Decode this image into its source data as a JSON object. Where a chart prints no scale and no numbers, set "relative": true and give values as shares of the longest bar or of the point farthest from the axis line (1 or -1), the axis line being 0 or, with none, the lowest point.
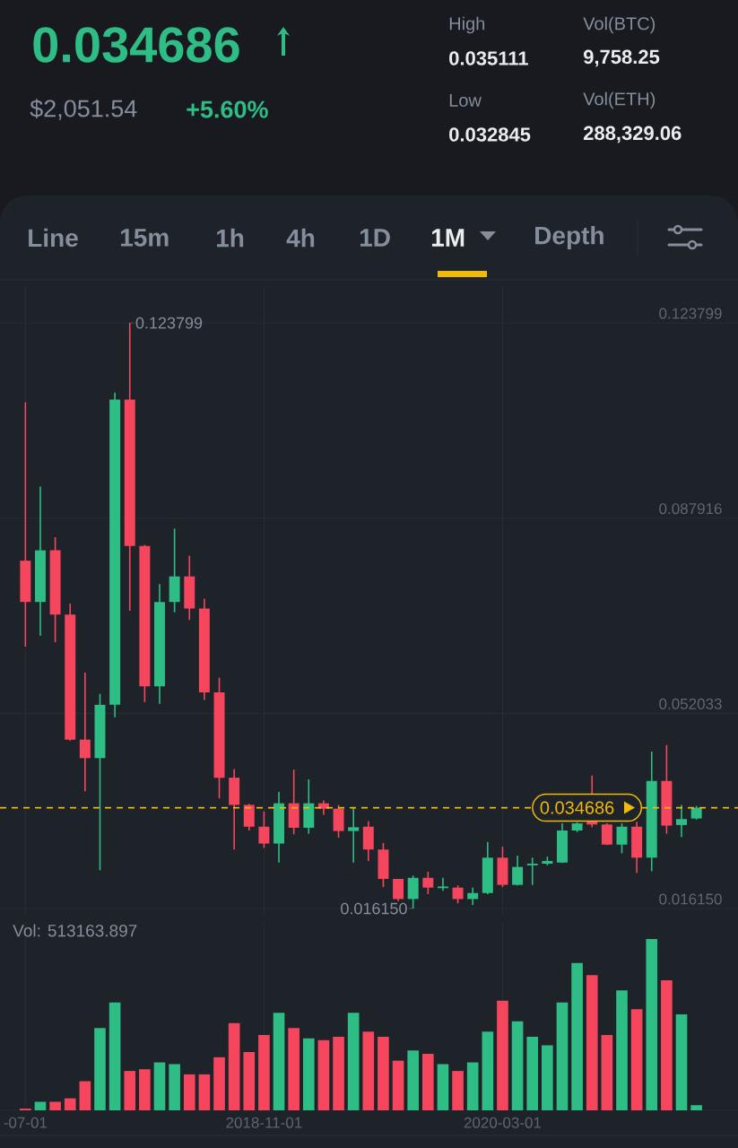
{
  "chart_data": [
    {
      "type": "other",
      "annotations": [
        "0.034686",
        "$2,051.54",
        "+5.60%",
        "High",
        "0.035111",
        "Vol(BTC)",
        "9,758.25",
        "Low",
        "0.032845",
        "Vol(ETH)",
        "288,329.06",
        "Line",
        "15m",
        "1h",
        "4h",
        "1D",
        "1M",
        "Depth"
      ]
    },
    {
      "type": "candlestick",
      "x": [
        "2017-07",
        "2017-08",
        "2017-09",
        "2017-10",
        "2017-11",
        "2017-12",
        "2018-01",
        "2018-02",
        "2018-03",
        "2018-04",
        "2018-05",
        "2018-06",
        "2018-07",
        "2018-08",
        "2018-09",
        "2018-10",
        "2018-11",
        "2018-12",
        "2019-01",
        "2019-02",
        "2019-03",
        "2019-04",
        "2019-05",
        "2019-06",
        "2019-07",
        "2019-08",
        "2019-09",
        "2019-10",
        "2019-11",
        "2019-12",
        "2020-01",
        "2020-02",
        "2020-03",
        "2020-04",
        "2020-05",
        "2020-06",
        "2020-07",
        "2020-08",
        "2020-09",
        "2020-10",
        "2020-11",
        "2020-12",
        "2021-01",
        "2021-02",
        "2021-03",
        "2021-04"
      ],
      "ohlc": [
        [
          0.0801,
          0.1092,
          0.0643,
          0.0725
        ],
        [
          0.0725,
          0.0937,
          0.0663,
          0.082
        ],
        [
          0.082,
          0.0844,
          0.0651,
          0.0702
        ],
        [
          0.0702,
          0.0722,
          0.047,
          0.0472
        ],
        [
          0.0472,
          0.0595,
          0.0377,
          0.0438
        ],
        [
          0.0438,
          0.0556,
          0.0232,
          0.0536
        ],
        [
          0.0536,
          0.111,
          0.0513,
          0.1097
        ],
        [
          0.1097,
          0.123799,
          0.0709,
          0.0828
        ],
        [
          0.0828,
          0.083,
          0.0541,
          0.057
        ],
        [
          0.057,
          0.0758,
          0.0538,
          0.0725
        ],
        [
          0.0725,
          0.086,
          0.0706,
          0.0772
        ],
        [
          0.0772,
          0.081,
          0.0692,
          0.0713
        ],
        [
          0.0713,
          0.0731,
          0.0545,
          0.0559
        ],
        [
          0.0559,
          0.0586,
          0.0364,
          0.0402
        ],
        [
          0.0402,
          0.0418,
          0.027,
          0.0352
        ],
        [
          0.0352,
          0.0354,
          0.0305,
          0.0312
        ],
        [
          0.0312,
          0.034,
          0.0273,
          0.0281
        ],
        [
          0.0281,
          0.0376,
          0.0246,
          0.0355
        ],
        [
          0.0355,
          0.0417,
          0.0298,
          0.031
        ],
        [
          0.031,
          0.0399,
          0.0299,
          0.0355
        ],
        [
          0.0355,
          0.036,
          0.0334,
          0.0345
        ],
        [
          0.0345,
          0.0352,
          0.0292,
          0.0304
        ],
        [
          0.0304,
          0.0347,
          0.0246,
          0.0311
        ],
        [
          0.0312,
          0.0322,
          0.0249,
          0.027
        ],
        [
          0.027,
          0.0282,
          0.0201,
          0.0216
        ],
        [
          0.0216,
          0.0216,
          0.0175,
          0.0179
        ],
        [
          0.0179,
          0.0222,
          0.01615,
          0.0218
        ],
        [
          0.0218,
          0.0229,
          0.0188,
          0.02
        ],
        [
          0.0199,
          0.0218,
          0.0194,
          0.0202
        ],
        [
          0.02,
          0.0204,
          0.0171,
          0.0179
        ],
        [
          0.0179,
          0.02,
          0.0168,
          0.019
        ],
        [
          0.019,
          0.0284,
          0.0188,
          0.0255
        ],
        [
          0.0255,
          0.0275,
          0.0201,
          0.0205
        ],
        [
          0.0205,
          0.0259,
          0.0204,
          0.0238
        ],
        [
          0.0241,
          0.0255,
          0.0205,
          0.0244
        ],
        [
          0.0244,
          0.0257,
          0.0241,
          0.0249
        ],
        [
          0.0246,
          0.0318,
          0.0245,
          0.0305
        ],
        [
          0.0305,
          0.032,
          0.0302,
          0.0318
        ],
        [
          0.0322,
          0.0406,
          0.0311,
          0.0316
        ],
        [
          0.0316,
          0.0318,
          0.0278,
          0.0279
        ],
        [
          0.0279,
          0.0318,
          0.0263,
          0.0312
        ],
        [
          0.0312,
          0.0321,
          0.0227,
          0.0255
        ],
        [
          0.0255,
          0.045,
          0.023,
          0.0396
        ],
        [
          0.0396,
          0.0462,
          0.0299,
          0.0314
        ],
        [
          0.0315,
          0.0352,
          0.0293,
          0.0326
        ],
        [
          0.0327,
          0.035,
          0.0325,
          0.034686
        ]
      ],
      "colors": [
        "#f6465d",
        "#2ebd85",
        "#f6465d",
        "#f6465d",
        "#f6465d",
        "#2ebd85",
        "#2ebd85",
        "#f6465d",
        "#f6465d",
        "#2ebd85",
        "#2ebd85",
        "#f6465d",
        "#f6465d",
        "#f6465d",
        "#f6465d",
        "#f6465d",
        "#f6465d",
        "#2ebd85",
        "#f6465d",
        "#2ebd85",
        "#f6465d",
        "#f6465d",
        "#2ebd85",
        "#f6465d",
        "#f6465d",
        "#f6465d",
        "#2ebd85",
        "#f6465d",
        "#2ebd85",
        "#f6465d",
        "#2ebd85",
        "#2ebd85",
        "#f6465d",
        "#2ebd85",
        "#2ebd85",
        "#2ebd85",
        "#2ebd85",
        "#2ebd85",
        "#f6465d",
        "#f6465d",
        "#2ebd85",
        "#f6465d",
        "#2ebd85",
        "#f6465d",
        "#2ebd85",
        "#2ebd85"
      ],
      "xlim": [
        "2017-05-10",
        "2021-06-25"
      ],
      "ylim": [
        0.015,
        0.1304
      ],
      "xticks": [
        {
          "value": "2017-07-01",
          "label": null
        },
        {
          "value": "2018-11-01",
          "label": null
        },
        {
          "value": "2020-03-01",
          "label": null
        }
      ],
      "yticks": [
        {
          "value": 0.01615,
          "label": "0.016150"
        },
        0.052033,
        0.087916,
        0.123799
      ],
      "grid": true,
      "tick_labels": "y",
      "ref_lines": [
        {
          "axis": "y",
          "value": 0.034686,
          "label": "0.034686",
          "color": "#f0b90b",
          "line_style": "dashed"
        }
      ],
      "annotations": [
        {
          "text": "0.123799",
          "x": "2018-02",
          "y": 0.123799
        },
        {
          "text": "0.016150",
          "x": "2019-09",
          "y": 0.01615
        }
      ]
    },
    {
      "type": "bar",
      "relative": true,
      "x": [
        "2017-07",
        "2017-08",
        "2017-09",
        "2017-10",
        "2017-11",
        "2017-12",
        "2018-01",
        "2018-02",
        "2018-03",
        "2018-04",
        "2018-05",
        "2018-06",
        "2018-07",
        "2018-08",
        "2018-09",
        "2018-10",
        "2018-11",
        "2018-12",
        "2019-01",
        "2019-02",
        "2019-03",
        "2019-04",
        "2019-05",
        "2019-06",
        "2019-07",
        "2019-08",
        "2019-09",
        "2019-10",
        "2019-11",
        "2019-12",
        "2020-01",
        "2020-02",
        "2020-03",
        "2020-04",
        "2020-05",
        "2020-06",
        "2020-07",
        "2020-08",
        "2020-09",
        "2020-10",
        "2020-11",
        "2020-12",
        "2021-01",
        "2021-02",
        "2021-03",
        "2021-04"
      ],
      "values": [
        0.01,
        0.05,
        0.05,
        0.07,
        0.17,
        0.48,
        0.63,
        0.23,
        0.24,
        0.28,
        0.27,
        0.21,
        0.21,
        0.31,
        0.51,
        0.34,
        0.44,
        0.57,
        0.48,
        0.42,
        0.41,
        0.43,
        0.57,
        0.46,
        0.43,
        0.29,
        0.35,
        0.33,
        0.27,
        0.23,
        0.28,
        0.46,
        0.64,
        0.52,
        0.43,
        0.38,
        0.63,
        0.86,
        0.79,
        0.44,
        0.7,
        0.59,
        1,
        0.76,
        0.56,
        0.03
      ],
      "colors": [
        "#f6465d",
        "#2ebd85",
        "#f6465d",
        "#f6465d",
        "#f6465d",
        "#2ebd85",
        "#2ebd85",
        "#f6465d",
        "#f6465d",
        "#2ebd85",
        "#2ebd85",
        "#f6465d",
        "#f6465d",
        "#f6465d",
        "#f6465d",
        "#f6465d",
        "#f6465d",
        "#2ebd85",
        "#f6465d",
        "#2ebd85",
        "#f6465d",
        "#f6465d",
        "#2ebd85",
        "#f6465d",
        "#f6465d",
        "#f6465d",
        "#2ebd85",
        "#f6465d",
        "#2ebd85",
        "#f6465d",
        "#2ebd85",
        "#2ebd85",
        "#f6465d",
        "#2ebd85",
        "#2ebd85",
        "#2ebd85",
        "#2ebd85",
        "#2ebd85",
        "#f6465d",
        "#f6465d",
        "#2ebd85",
        "#f6465d",
        "#2ebd85",
        "#f6465d",
        "#2ebd85",
        "#2ebd85"
      ],
      "xlim": [
        "2017-05-10",
        "2021-06-25"
      ],
      "xticks": [
        {
          "value": "2017-07-01",
          "label": "-07-01"
        },
        "2018-11-01",
        "2020-03-01"
      ],
      "grid": "x",
      "tick_labels": "x",
      "annotations": [
        "Vol: 513163.897"
      ]
    }
  ]
}
